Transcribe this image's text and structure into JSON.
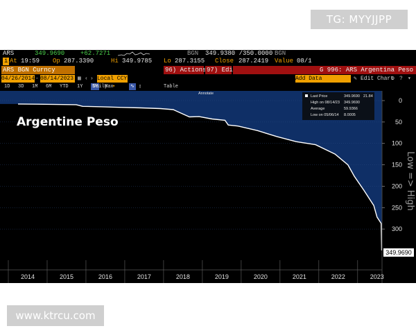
{
  "watermark_top": "TG: MYYJJPP",
  "watermark_bottom": "www.ktrcu.com",
  "quote": {
    "ticker": "ARS",
    "last": "349.9690",
    "change": "+62.7271",
    "source": "BGN",
    "bid_ask": "349.9380 /350.0000",
    "source2": "BGN",
    "time_label": "At",
    "time": "19:59",
    "open_label": "Op",
    "open": "287.3390",
    "high_label": "Hi",
    "high": "349.9785",
    "low_label": "Lo",
    "low": "287.3155",
    "close_label": "Close",
    "close": "287.2419",
    "value_label": "Value",
    "value_date": "08/1"
  },
  "toolbar": {
    "security": "ARS BGN Curncy",
    "actions": "96) Actions",
    "edit": "97) Edit",
    "title": "G 996: ARS Argentina Peso"
  },
  "controls": {
    "start_date": "04/26/2014",
    "end_date": "08/14/2023",
    "currency": "Local CCY",
    "periods": [
      "1D",
      "3D",
      "1M",
      "6M",
      "YTD",
      "1Y",
      "5Y",
      "Max"
    ],
    "selected_period": "5Y",
    "frequency": "Daily",
    "table": "Table",
    "add_data": "Add Data",
    "edit_chart": "Edit Chart"
  },
  "annotation_label": "Annotate",
  "legend": {
    "last_price_label": "Last Price",
    "last_price": "349.9690",
    "last_price_pct": "21.84",
    "high_label": "High on 08/14/23",
    "high_value": "349.9690",
    "average_label": "Average",
    "average_value": "59.9366",
    "low_label": "Low on 05/06/14",
    "low_value": "8.0005"
  },
  "overlay_title": "Argentine Peso",
  "right_axis_label": "Low => High",
  "chart_data": {
    "type": "line",
    "inverted_y": true,
    "ylim": [
      0,
      350
    ],
    "yticks": [
      0,
      50,
      100,
      150,
      200,
      250,
      300
    ],
    "xticks": [
      "2014",
      "2015",
      "2016",
      "2017",
      "2018",
      "2019",
      "2020",
      "2021",
      "2022",
      "2023"
    ],
    "last_label": "349.9690",
    "series": [
      {
        "x": [
          "2014-04",
          "2014-10",
          "2015-04",
          "2015-10",
          "2015-12",
          "2016-06",
          "2016-12",
          "2017-06",
          "2017-12",
          "2018-04",
          "2018-06",
          "2018-09",
          "2018-12",
          "2019-04",
          "2019-08",
          "2019-09",
          "2019-12",
          "2020-06",
          "2020-12",
          "2021-06",
          "2021-12",
          "2022-06",
          "2022-10",
          "2022-12",
          "2023-03",
          "2023-06",
          "2023-07",
          "2023-08-10",
          "2023-08-14"
        ],
        "y": [
          8,
          8.5,
          9,
          9.6,
          13.5,
          14.5,
          15.8,
          17,
          18.6,
          21,
          28,
          38,
          37.5,
          43,
          46,
          57,
          59.5,
          70,
          84,
          96,
          103,
          125,
          150,
          177,
          210,
          245,
          272,
          287,
          350
        ]
      }
    ]
  }
}
